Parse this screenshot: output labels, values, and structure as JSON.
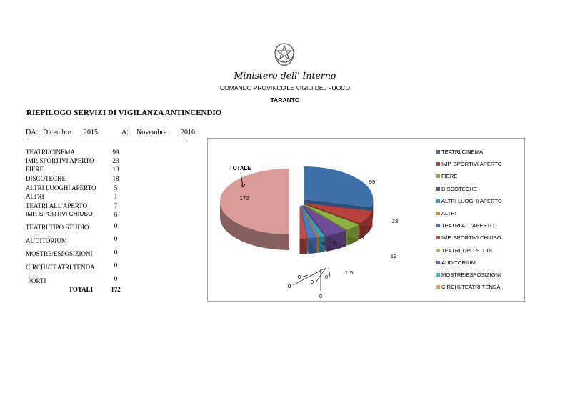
{
  "header": {
    "ministry": "Ministero dell' Interno",
    "department": "COMANDO PROVINCIALE VIGILI DEL FUOCO",
    "city": "TARANTO"
  },
  "report": {
    "title": "RIEPILOGO SERVIZI DI VIGILANZA ANTINCENDIO",
    "from_label": "DA:",
    "from_month": "Dicembre",
    "from_year": "2015",
    "to_label": "A:",
    "to_month": "Novembre",
    "to_year": "2016"
  },
  "table": {
    "rows": [
      {
        "label": "TEATRI/CINEMA",
        "value": "99"
      },
      {
        "label": "IMP. SPORTIVI APERTO",
        "value": "23"
      },
      {
        "label": "FIERE",
        "value": "13"
      },
      {
        "label": "DISCOTECHE",
        "value": "18"
      },
      {
        "label": "ALTRI LUOGHI APERTO",
        "value": "5"
      },
      {
        "label": "ALTRI",
        "value": "1"
      },
      {
        "label": "TEATRI ALL'APERTO",
        "value": "7"
      },
      {
        "label": "IMP. SPORTIVI CHIUSO",
        "value": "6"
      },
      {
        "label": "TEATRI TIPO STUDIO",
        "value": "0"
      },
      {
        "label": "AUDITORIUM",
        "value": "0"
      },
      {
        "label": "MOSTRE/ESPOSIZIONI",
        "value": "0"
      },
      {
        "label": "CIRCHI/TEATRI TENDA",
        "value": "0"
      },
      {
        "label": "PORTI",
        "value": "0"
      }
    ],
    "total_label": "TOTALI",
    "total_value": "172"
  },
  "colors": {
    "teatri_cinema": "#3d6fa8",
    "imp_sportivi_aperto": "#b8413d",
    "fiere": "#8fb044",
    "discoteche": "#6d4c98",
    "altri_luoghi_aperto": "#3a9db6",
    "altri": "#e87e2c",
    "teatri_all_aperto": "#4c7ac0",
    "imp_sportivi_chiuso": "#c24d4a",
    "teatri_tipo_studi": "#9cbf58",
    "auditorium": "#7f62a8",
    "mostre_esposizioni": "#4bb3c8",
    "circhi_teatri_tenda": "#f79646",
    "totale": "#d99a9a"
  },
  "chart_data": {
    "type": "pie",
    "style": "3d-exploded",
    "total_callout": "TOTALE",
    "legend_position": "right",
    "slices": [
      {
        "name": "TEATRI/CINEMA",
        "value": 99,
        "label": "99",
        "color": "#3d6fa8"
      },
      {
        "name": "IMP. SPORTIVI APERTO",
        "value": 23,
        "label": "23",
        "color": "#b8413d"
      },
      {
        "name": "FIERE",
        "value": 13,
        "label": "13",
        "color": "#8fb044"
      },
      {
        "name": "DISCOTECHE",
        "value": 18,
        "label": "18",
        "color": "#6d4c98"
      },
      {
        "name": "ALTRI LUOGHI APERTO",
        "value": 5,
        "label": "5",
        "color": "#3a9db6"
      },
      {
        "name": "ALTRI",
        "value": 1,
        "label": "1",
        "color": "#e87e2c"
      },
      {
        "name": "TEATRI ALL'APERTO",
        "value": 7,
        "label": "7",
        "color": "#4c7ac0"
      },
      {
        "name": "IMP. SPORTIVI CHIUSO",
        "value": 6,
        "label": "6",
        "color": "#c24d4a"
      },
      {
        "name": "TEATRI TIPO STUDI",
        "value": 0,
        "label": "0",
        "color": "#9cbf58"
      },
      {
        "name": "AUDITORIUM",
        "value": 0,
        "label": "0",
        "color": "#7f62a8"
      },
      {
        "name": "MOSTRE/ESPOSIZIONI",
        "value": 0,
        "label": "0",
        "color": "#4bb3c8"
      },
      {
        "name": "CIRCHI/TEATRI TENDA",
        "value": 0,
        "label": "0",
        "color": "#f79646"
      },
      {
        "name": "TOTALE",
        "value": 172,
        "label": "172",
        "color": "#d99a9a"
      }
    ],
    "legend": [
      "TEATRI/CINEMA",
      "IMP. SPORTIVI APERTO",
      "FIERE",
      "DISCOTECHE",
      "ALTRI LUOGHI APERTO",
      "ALTRI",
      "TEATRI ALL'APERTO",
      "IMP. SPORTIVI CHIUSO",
      "TEATRI TIPO STUDI",
      "AUDITORIUM",
      "MOSTRE/ESPOSIZIONI",
      "CIRCHI/TEATRI TENDA"
    ]
  }
}
